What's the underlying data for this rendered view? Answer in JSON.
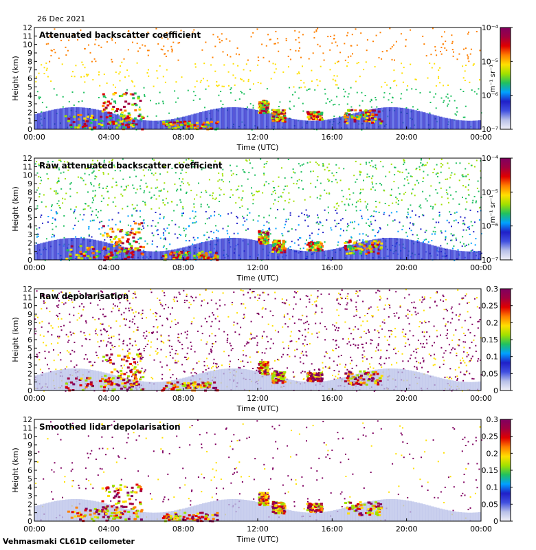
{
  "date": "26 Dec 2021",
  "footer": "Vehmasmaki CL61D ceilometer",
  "colors": {
    "cmap": [
      "#f0f0f8",
      "#b8c0e8",
      "#4050e0",
      "#2020c8",
      "#00a0ff",
      "#20c060",
      "#a0e000",
      "#ffe000",
      "#ff8000",
      "#e00000",
      "#a00040",
      "#800060"
    ]
  },
  "chart_data": [
    {
      "type": "heatmap",
      "title": "Attenuated backscatter coefficient",
      "xlabel": "Time (UTC)",
      "ylabel": "Height (km)",
      "xticks": [
        "00:00",
        "04:00",
        "08:00",
        "12:00",
        "16:00",
        "20:00",
        "00:00"
      ],
      "yticks": [
        "0",
        "1",
        "2",
        "3",
        "4",
        "5",
        "6",
        "7",
        "8",
        "9",
        "10",
        "11",
        "12"
      ],
      "ylim": [
        0,
        12
      ],
      "colorbar": {
        "scale": "log",
        "unit": "m⁻¹ sr⁻¹",
        "labels": [
          "10⁻⁷",
          "10⁻⁶",
          "10⁻⁵",
          "10⁻⁴"
        ],
        "range": [
          1e-07,
          0.0001
        ]
      }
    },
    {
      "type": "heatmap",
      "title": "Raw attenuated backscatter coefficient",
      "xlabel": "Time (UTC)",
      "ylabel": "Height (km)",
      "xticks": [
        "00:00",
        "04:00",
        "08:00",
        "12:00",
        "16:00",
        "20:00",
        "00:00"
      ],
      "yticks": [
        "0",
        "1",
        "2",
        "3",
        "4",
        "5",
        "6",
        "7",
        "8",
        "9",
        "10",
        "11",
        "12"
      ],
      "ylim": [
        0,
        12
      ],
      "colorbar": {
        "scale": "log",
        "unit": "m⁻¹ sr⁻¹",
        "labels": [
          "10⁻⁷",
          "10⁻⁶",
          "10⁻⁵",
          "10⁻⁴"
        ],
        "range": [
          1e-07,
          0.0001
        ]
      }
    },
    {
      "type": "heatmap",
      "title": "Raw depolarisation",
      "xlabel": "Time (UTC)",
      "ylabel": "Height (km)",
      "xticks": [
        "00:00",
        "04:00",
        "08:00",
        "12:00",
        "16:00",
        "20:00",
        "00:00"
      ],
      "yticks": [
        "0",
        "1",
        "2",
        "3",
        "4",
        "5",
        "6",
        "7",
        "8",
        "9",
        "10",
        "11",
        "12"
      ],
      "ylim": [
        0,
        12
      ],
      "colorbar": {
        "scale": "linear",
        "unit": "",
        "labels": [
          "0",
          "0.05",
          "0.1",
          "0.15",
          "0.2",
          "0.25",
          "0.3"
        ],
        "range": [
          0,
          0.3
        ]
      }
    },
    {
      "type": "heatmap",
      "title": "Smoothed lidar depolarisation",
      "xlabel": "Time (UTC)",
      "ylabel": "Height (km)",
      "xticks": [
        "00:00",
        "04:00",
        "08:00",
        "12:00",
        "16:00",
        "20:00",
        "00:00"
      ],
      "yticks": [
        "0",
        "1",
        "2",
        "3",
        "4",
        "5",
        "6",
        "7",
        "8",
        "9",
        "10",
        "11",
        "12"
      ],
      "ylim": [
        0,
        12
      ],
      "colorbar": {
        "scale": "linear",
        "unit": "",
        "labels": [
          "0",
          "0.05",
          "0.1",
          "0.15",
          "0.2",
          "0.25",
          "0.3"
        ],
        "range": [
          0,
          0.3
        ]
      }
    }
  ]
}
